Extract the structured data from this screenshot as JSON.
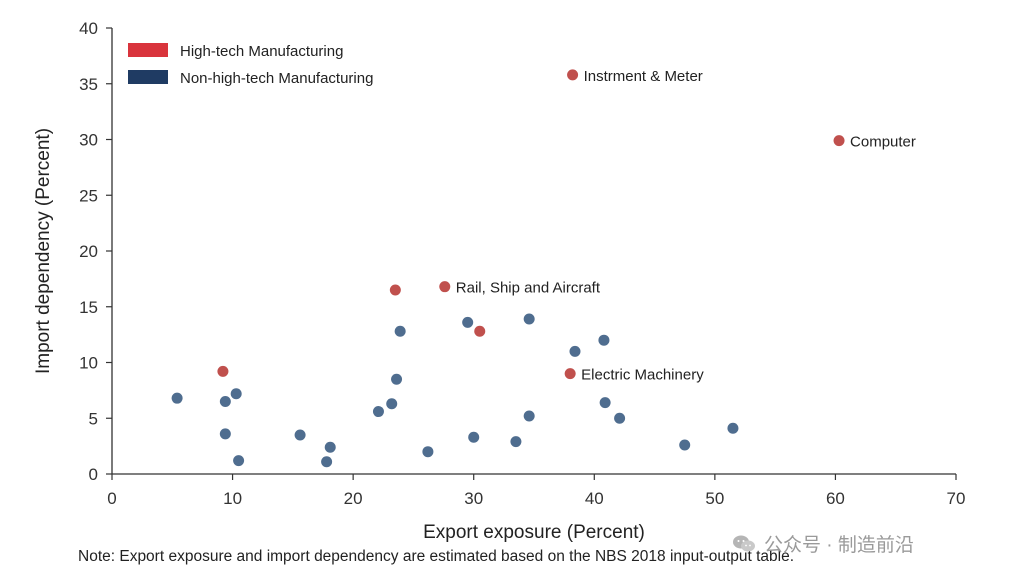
{
  "chart_data": {
    "type": "scatter",
    "xlabel": "Export exposure (Percent)",
    "ylabel": "Import dependency (Percent)",
    "xlim": [
      0,
      70
    ],
    "ylim": [
      0,
      40
    ],
    "x_ticks": [
      "0",
      "10",
      "20",
      "30",
      "40",
      "50",
      "60",
      "70"
    ],
    "y_ticks": [
      "0",
      "5",
      "10",
      "15",
      "20",
      "25",
      "30",
      "35",
      "40"
    ],
    "grid": false,
    "legend_position": "top-left",
    "series": [
      {
        "name": "High-tech Manufacturing",
        "color": "#c0504d",
        "legend_color": "#d9343c",
        "points": [
          {
            "x": 9.2,
            "y": 9.2
          },
          {
            "x": 23.5,
            "y": 16.5
          },
          {
            "x": 27.6,
            "y": 16.8,
            "label": "Rail, Ship and Aircraft"
          },
          {
            "x": 30.5,
            "y": 12.8
          },
          {
            "x": 38.2,
            "y": 35.8,
            "label": "Instrment & Meter"
          },
          {
            "x": 38.0,
            "y": 9.0,
            "label": "Electric Machinery"
          },
          {
            "x": 60.3,
            "y": 29.9,
            "label": "Computer"
          }
        ]
      },
      {
        "name": "Non-high-tech Manufacturing",
        "color": "#4f6d8f",
        "legend_color": "#1f3b63",
        "points": [
          {
            "x": 5.4,
            "y": 6.8
          },
          {
            "x": 9.4,
            "y": 6.5
          },
          {
            "x": 10.3,
            "y": 7.2
          },
          {
            "x": 9.4,
            "y": 3.6
          },
          {
            "x": 10.5,
            "y": 1.2
          },
          {
            "x": 15.6,
            "y": 3.5
          },
          {
            "x": 17.8,
            "y": 1.1
          },
          {
            "x": 18.1,
            "y": 2.4
          },
          {
            "x": 22.1,
            "y": 5.6
          },
          {
            "x": 23.2,
            "y": 6.3
          },
          {
            "x": 23.6,
            "y": 8.5
          },
          {
            "x": 23.9,
            "y": 12.8
          },
          {
            "x": 26.2,
            "y": 2.0
          },
          {
            "x": 29.5,
            "y": 13.6
          },
          {
            "x": 30.0,
            "y": 3.3
          },
          {
            "x": 33.5,
            "y": 2.9
          },
          {
            "x": 34.6,
            "y": 13.9
          },
          {
            "x": 34.6,
            "y": 5.2
          },
          {
            "x": 38.4,
            "y": 11.0
          },
          {
            "x": 40.8,
            "y": 12.0
          },
          {
            "x": 40.9,
            "y": 6.4
          },
          {
            "x": 42.1,
            "y": 5.0
          },
          {
            "x": 47.5,
            "y": 2.6
          },
          {
            "x": 51.5,
            "y": 4.1
          }
        ]
      }
    ]
  },
  "note": "Note: Export exposure and import dependency are estimated based on the NBS 2018 input-output table.",
  "watermark": "公众号 · 制造前沿"
}
